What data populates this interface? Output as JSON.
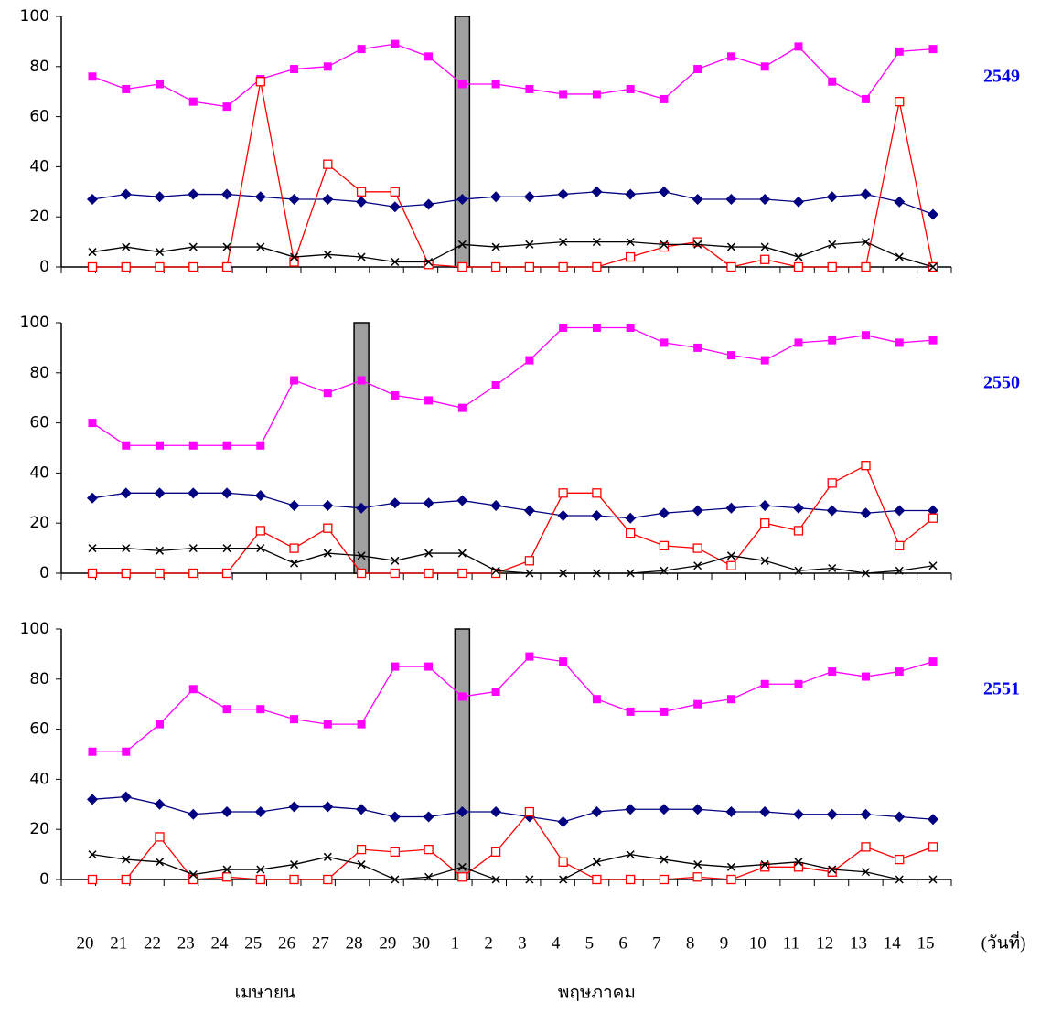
{
  "chart_data": {
    "type": "line",
    "categories": [
      "20",
      "21",
      "22",
      "23",
      "24",
      "25",
      "26",
      "27",
      "28",
      "29",
      "30",
      "1",
      "2",
      "3",
      "4",
      "5",
      "6",
      "7",
      "8",
      "9",
      "10",
      "11",
      "12",
      "13",
      "14",
      "15"
    ],
    "xlabel": "(วันที่)",
    "month_labels": [
      "เมษายน",
      "พฤษภาคม"
    ],
    "panels": [
      {
        "label": "2549",
        "ylim": [
          0,
          100
        ],
        "yticks": [
          0,
          20,
          40,
          60,
          80,
          100
        ],
        "series": [
          {
            "color": "#ff00ff",
            "marker": "square",
            "values": [
              76,
              71,
              73,
              66,
              64,
              75,
              79,
              80,
              87,
              89,
              84,
              73,
              73,
              71,
              69,
              69,
              71,
              67,
              79,
              84,
              80,
              88,
              74,
              67,
              86,
              87
            ]
          },
          {
            "color": "#000080",
            "marker": "diamond",
            "values": [
              27,
              29,
              28,
              29,
              29,
              28,
              27,
              27,
              26,
              24,
              25,
              27,
              28,
              28,
              29,
              30,
              29,
              30,
              27,
              27,
              27,
              26,
              28,
              29,
              26,
              21
            ]
          },
          {
            "color": "#ff0000",
            "marker": "open-square",
            "values": [
              0,
              0,
              0,
              0,
              0,
              74,
              2,
              41,
              30,
              30,
              1,
              0,
              0,
              0,
              0,
              0,
              4,
              8,
              10,
              0,
              3,
              0,
              0,
              0,
              66,
              0
            ]
          },
          {
            "color": "#000000",
            "marker": "x",
            "values": [
              6,
              8,
              6,
              8,
              8,
              8,
              4,
              5,
              4,
              2,
              2,
              9,
              8,
              9,
              10,
              10,
              10,
              9,
              9,
              8,
              8,
              4,
              9,
              10,
              4,
              0
            ]
          },
          {
            "type": "bar",
            "color": "#a0a0a0",
            "values": [
              null,
              null,
              null,
              null,
              null,
              null,
              null,
              null,
              null,
              null,
              null,
              100,
              null,
              null,
              null,
              null,
              null,
              null,
              null,
              null,
              null,
              null,
              null,
              null,
              null,
              null
            ]
          }
        ]
      },
      {
        "label": "2550",
        "ylim": [
          0,
          100
        ],
        "yticks": [
          0,
          20,
          40,
          60,
          80,
          100
        ],
        "series": [
          {
            "color": "#ff00ff",
            "marker": "square",
            "values": [
              60,
              51,
              51,
              51,
              51,
              51,
              77,
              72,
              77,
              71,
              69,
              66,
              75,
              85,
              98,
              98,
              98,
              92,
              90,
              87,
              85,
              92,
              93,
              95,
              92,
              93
            ]
          },
          {
            "color": "#000080",
            "marker": "diamond",
            "values": [
              30,
              32,
              32,
              32,
              32,
              31,
              27,
              27,
              26,
              28,
              28,
              29,
              27,
              25,
              23,
              23,
              22,
              24,
              25,
              26,
              27,
              26,
              25,
              24,
              25,
              25
            ]
          },
          {
            "color": "#ff0000",
            "marker": "open-square",
            "values": [
              0,
              0,
              0,
              0,
              0,
              17,
              10,
              18,
              0,
              0,
              0,
              0,
              0,
              5,
              32,
              32,
              16,
              11,
              10,
              3,
              20,
              17,
              36,
              43,
              11,
              22
            ]
          },
          {
            "color": "#000000",
            "marker": "x",
            "values": [
              10,
              10,
              9,
              10,
              10,
              10,
              4,
              8,
              7,
              5,
              8,
              8,
              1,
              0,
              0,
              0,
              0,
              1,
              3,
              7,
              5,
              1,
              2,
              0,
              1,
              3
            ]
          },
          {
            "type": "bar",
            "color": "#a0a0a0",
            "values": [
              null,
              null,
              null,
              null,
              null,
              null,
              null,
              null,
              100,
              null,
              null,
              null,
              null,
              null,
              null,
              null,
              null,
              null,
              null,
              null,
              null,
              null,
              null,
              null,
              null,
              null
            ]
          }
        ]
      },
      {
        "label": "2551",
        "ylim": [
          0,
          100
        ],
        "yticks": [
          0,
          20,
          40,
          60,
          80,
          100
        ],
        "series": [
          {
            "color": "#ff00ff",
            "marker": "square",
            "values": [
              51,
              51,
              62,
              76,
              68,
              68,
              64,
              62,
              62,
              85,
              85,
              73,
              75,
              89,
              87,
              72,
              67,
              67,
              70,
              72,
              78,
              78,
              83,
              81,
              83,
              87
            ]
          },
          {
            "color": "#000080",
            "marker": "diamond",
            "values": [
              32,
              33,
              30,
              26,
              27,
              27,
              29,
              29,
              28,
              25,
              25,
              27,
              27,
              25,
              23,
              27,
              28,
              28,
              28,
              27,
              27,
              26,
              26,
              26,
              25,
              24
            ]
          },
          {
            "color": "#ff0000",
            "marker": "open-square",
            "values": [
              0,
              0,
              17,
              0,
              1,
              0,
              0,
              0,
              12,
              11,
              12,
              1,
              11,
              27,
              7,
              0,
              0,
              0,
              1,
              0,
              5,
              5,
              3,
              13,
              8,
              13
            ]
          },
          {
            "color": "#000000",
            "marker": "x",
            "values": [
              10,
              8,
              7,
              2,
              4,
              4,
              6,
              9,
              6,
              0,
              1,
              5,
              0,
              0,
              0,
              7,
              10,
              8,
              6,
              5,
              6,
              7,
              4,
              3,
              0,
              0
            ]
          },
          {
            "type": "bar",
            "color": "#a0a0a0",
            "values": [
              null,
              null,
              null,
              null,
              null,
              null,
              null,
              null,
              null,
              null,
              null,
              100,
              null,
              null,
              null,
              null,
              null,
              null,
              null,
              null,
              null,
              null,
              null,
              null,
              null,
              null
            ]
          }
        ]
      }
    ]
  }
}
